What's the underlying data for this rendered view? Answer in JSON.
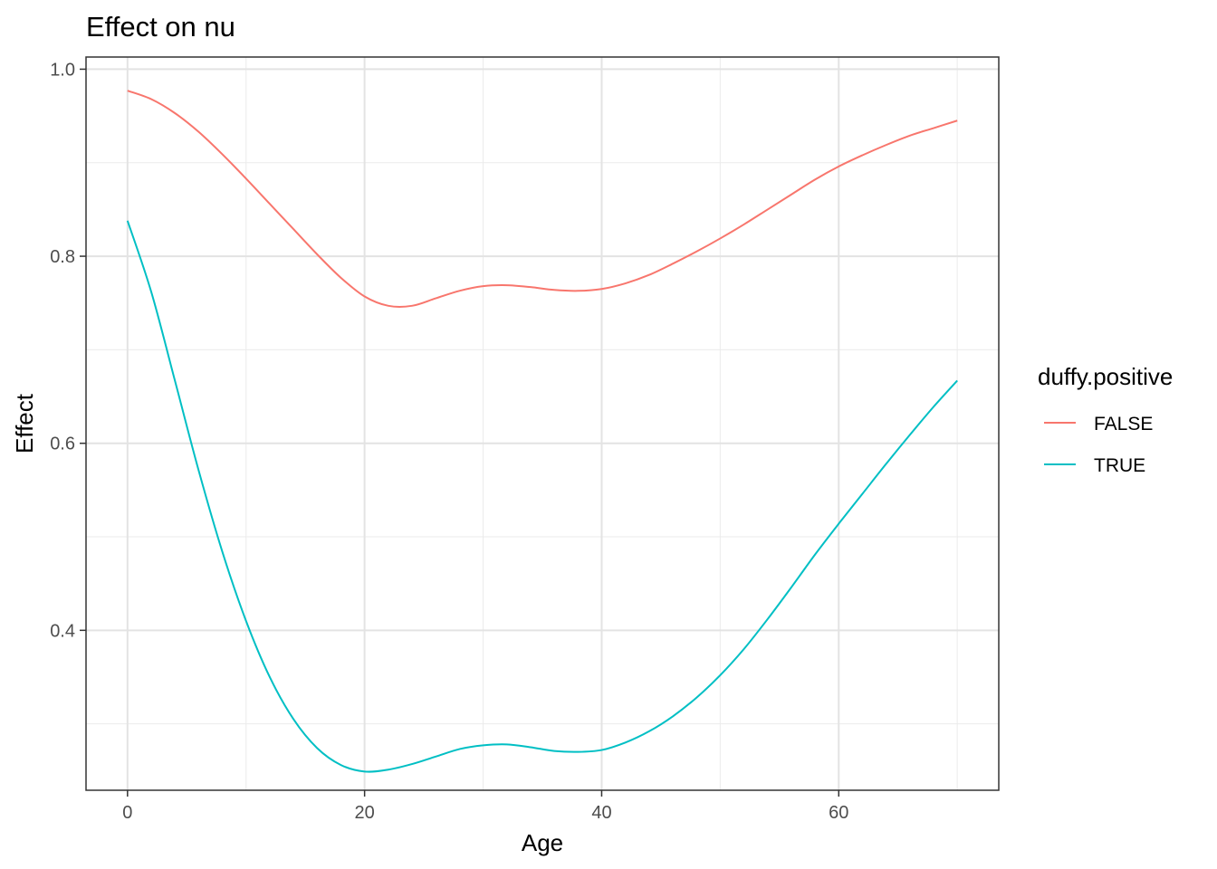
{
  "chart_data": {
    "type": "line",
    "title": "Effect on nu",
    "xlabel": "Age",
    "ylabel": "Effect",
    "xlim": [
      -3.5,
      73.5
    ],
    "ylim": [
      0.229,
      1.013
    ],
    "xticks": [
      0,
      20,
      40,
      60
    ],
    "yticks": [
      0.4,
      0.6,
      0.8,
      1.0
    ],
    "xtick_labels": [
      "0",
      "20",
      "40",
      "60"
    ],
    "ytick_labels": [
      "0.4",
      "0.6",
      "0.8",
      "1.0"
    ],
    "minor_xticks": [
      10,
      30,
      50,
      70
    ],
    "minor_yticks": [
      0.3,
      0.5,
      0.7,
      0.9
    ],
    "grid": true,
    "legend": {
      "title": "duffy.positive",
      "position": "right"
    },
    "series": [
      {
        "name": "FALSE",
        "color": "#F8766D",
        "x": [
          0,
          2,
          4,
          6,
          8,
          10,
          12,
          14,
          16,
          18,
          20,
          22,
          24,
          26,
          28,
          30,
          32,
          34,
          36,
          38,
          40,
          42,
          44,
          46,
          48,
          50,
          52,
          54,
          56,
          58,
          60,
          62,
          64,
          66,
          68,
          70
        ],
        "y": [
          0.977,
          0.968,
          0.953,
          0.933,
          0.909,
          0.883,
          0.856,
          0.829,
          0.802,
          0.777,
          0.757,
          0.747,
          0.747,
          0.755,
          0.763,
          0.768,
          0.769,
          0.767,
          0.764,
          0.763,
          0.765,
          0.771,
          0.78,
          0.792,
          0.805,
          0.819,
          0.834,
          0.85,
          0.866,
          0.882,
          0.896,
          0.908,
          0.919,
          0.929,
          0.937,
          0.945
        ]
      },
      {
        "name": "TRUE",
        "color": "#00BFC4",
        "x": [
          0,
          2,
          4,
          6,
          8,
          10,
          12,
          14,
          16,
          18,
          20,
          22,
          24,
          26,
          28,
          30,
          32,
          34,
          36,
          38,
          40,
          42,
          44,
          46,
          48,
          50,
          52,
          54,
          56,
          58,
          60,
          62,
          64,
          66,
          68,
          70
        ],
        "y": [
          0.838,
          0.762,
          0.667,
          0.571,
          0.484,
          0.41,
          0.35,
          0.305,
          0.274,
          0.256,
          0.249,
          0.251,
          0.257,
          0.265,
          0.273,
          0.277,
          0.278,
          0.275,
          0.271,
          0.27,
          0.272,
          0.28,
          0.292,
          0.308,
          0.328,
          0.352,
          0.38,
          0.412,
          0.446,
          0.481,
          0.514,
          0.546,
          0.578,
          0.609,
          0.639,
          0.667
        ]
      }
    ]
  }
}
